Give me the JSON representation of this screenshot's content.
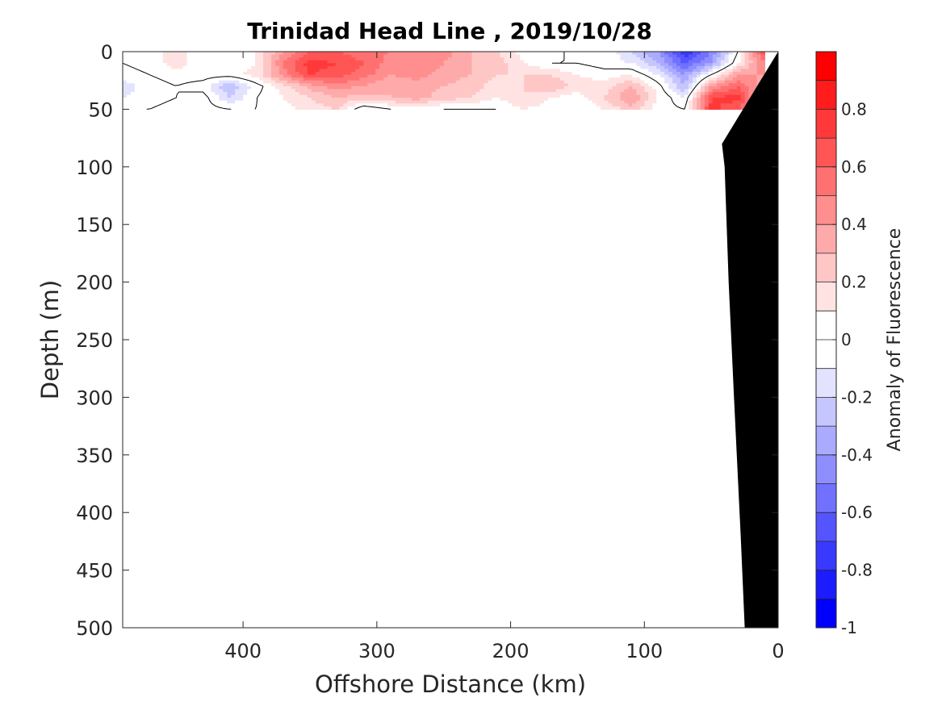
{
  "chart_data": {
    "type": "heatmap",
    "title": "Trinidad Head Line , 2019/10/28",
    "xlabel": "Offshore Distance (km)",
    "ylabel": "Depth (m)",
    "xlim": [
      490,
      0
    ],
    "ylim": [
      0,
      500
    ],
    "x_reversed": true,
    "y_reversed": true,
    "x_ticks": [
      400,
      300,
      200,
      100,
      0
    ],
    "y_ticks": [
      0,
      50,
      100,
      150,
      200,
      250,
      300,
      350,
      400,
      450,
      500
    ],
    "colorbar": {
      "label": "Anomaly of Fluorescence",
      "range": [
        -1,
        1
      ],
      "ticks": [
        0.8,
        0.6,
        0.4,
        0.2,
        0,
        -0.2,
        -0.4,
        -0.6,
        -0.8,
        -1
      ],
      "levels": [
        {
          "from": 0.9,
          "to": 1.0,
          "color": "#ff0000"
        },
        {
          "from": 0.8,
          "to": 0.9,
          "color": "#ff1c1c"
        },
        {
          "from": 0.7,
          "to": 0.8,
          "color": "#ff3939"
        },
        {
          "from": 0.6,
          "to": 0.7,
          "color": "#ff5555"
        },
        {
          "from": 0.5,
          "to": 0.6,
          "color": "#ff7171"
        },
        {
          "from": 0.4,
          "to": 0.5,
          "color": "#ff8e8e"
        },
        {
          "from": 0.3,
          "to": 0.4,
          "color": "#ffaaaa"
        },
        {
          "from": 0.2,
          "to": 0.3,
          "color": "#ffc6c6"
        },
        {
          "from": 0.1,
          "to": 0.2,
          "color": "#ffe3e3"
        },
        {
          "from": 0.0,
          "to": 0.1,
          "color": "#ffffff"
        },
        {
          "from": -0.1,
          "to": 0.0,
          "color": "#ffffff"
        },
        {
          "from": -0.2,
          "to": -0.1,
          "color": "#e3e3ff"
        },
        {
          "from": -0.3,
          "to": -0.2,
          "color": "#c6c6ff"
        },
        {
          "from": -0.4,
          "to": -0.3,
          "color": "#aaaaff"
        },
        {
          "from": -0.5,
          "to": -0.4,
          "color": "#8e8eff"
        },
        {
          "from": -0.6,
          "to": -0.5,
          "color": "#7171ff"
        },
        {
          "from": -0.7,
          "to": -0.6,
          "color": "#5555ff"
        },
        {
          "from": -0.8,
          "to": -0.7,
          "color": "#3939ff"
        },
        {
          "from": -0.9,
          "to": -0.8,
          "color": "#1c1cff"
        },
        {
          "from": -1.0,
          "to": -0.9,
          "color": "#0000ff"
        }
      ]
    },
    "field": {
      "x": [
        490,
        470,
        450,
        430,
        410,
        390,
        370,
        350,
        330,
        310,
        290,
        270,
        250,
        230,
        210,
        190,
        170,
        150,
        130,
        110,
        90,
        70,
        50,
        30,
        10
      ],
      "depth": [
        0,
        10,
        20,
        30,
        40,
        50
      ],
      "values": [
        [
          0.05,
          0.05,
          0.15,
          0.0,
          0.0,
          0.1,
          0.4,
          0.6,
          0.6,
          0.55,
          0.5,
          0.4,
          0.45,
          0.3,
          0.2,
          0.05,
          0.05,
          -0.05,
          0.0,
          -0.2,
          -0.4,
          -0.8,
          -0.5,
          0.0,
          0.7
        ],
        [
          0.0,
          0.05,
          0.15,
          0.05,
          0.0,
          0.1,
          0.5,
          0.75,
          0.7,
          0.6,
          0.45,
          0.5,
          0.4,
          0.3,
          0.25,
          0.1,
          0.0,
          0.0,
          -0.05,
          -0.1,
          -0.3,
          -0.6,
          -0.4,
          0.1,
          0.5
        ],
        [
          -0.05,
          0.0,
          0.05,
          0.05,
          0.05,
          0.15,
          0.45,
          0.7,
          0.65,
          0.55,
          0.4,
          0.45,
          0.35,
          0.3,
          0.2,
          0.2,
          0.2,
          0.1,
          0.05,
          0.1,
          -0.1,
          -0.4,
          0.0,
          0.4,
          0.4
        ],
        [
          -0.15,
          -0.05,
          0.0,
          -0.05,
          -0.3,
          -0.05,
          0.15,
          0.35,
          0.45,
          0.4,
          0.3,
          0.35,
          0.3,
          0.25,
          0.15,
          0.2,
          0.3,
          0.15,
          0.15,
          0.3,
          0.05,
          -0.3,
          0.4,
          0.6,
          0.3
        ],
        [
          -0.1,
          -0.05,
          0.0,
          0.05,
          -0.2,
          0.0,
          0.1,
          0.2,
          0.3,
          0.25,
          0.3,
          0.35,
          0.25,
          0.2,
          0.1,
          0.2,
          0.1,
          0.05,
          0.2,
          0.4,
          0.1,
          -0.1,
          0.7,
          0.75,
          0.2
        ],
        [
          0.0,
          0.0,
          0.05,
          0.05,
          0.0,
          0.0,
          0.05,
          0.15,
          0.2,
          -0.1,
          0.0,
          0.05,
          0.0,
          0.0,
          0.0,
          0.1,
          0.05,
          0.0,
          0.1,
          0.25,
          0.05,
          0.0,
          0.75,
          0.6,
          0.2
        ]
      ]
    },
    "bathymetry": {
      "color": "#000000",
      "points": [
        [
          25,
          500
        ],
        [
          28,
          420
        ],
        [
          33,
          300
        ],
        [
          37,
          200
        ],
        [
          40,
          100
        ],
        [
          42,
          80
        ],
        [
          0,
          0
        ]
      ]
    }
  }
}
